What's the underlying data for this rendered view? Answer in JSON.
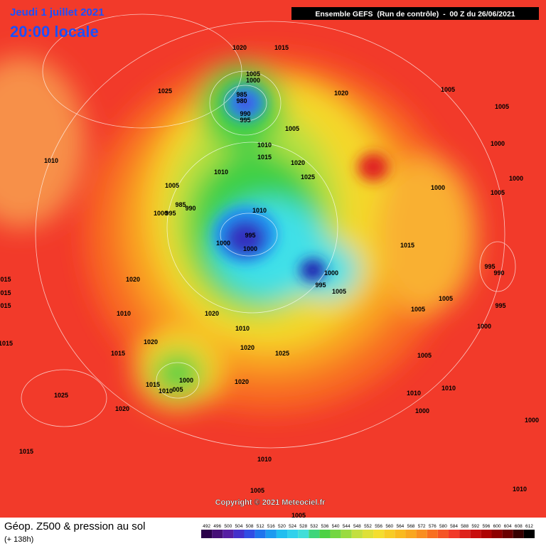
{
  "header": {
    "date": "Jeudi 1 juillet 2021",
    "time": "20:00 locale",
    "run": "Ensemble GEFS  (Run de contrôle)  -  00 Z du 26/06/2021"
  },
  "copyright": "Copyright © 2021 Meteociel.fr",
  "footer": {
    "title": "Géop. Z500 & pression au sol",
    "subtitle": "(+ 138h)"
  },
  "colorbar": {
    "labels": [
      492,
      496,
      500,
      504,
      508,
      512,
      516,
      520,
      524,
      528,
      532,
      536,
      540,
      544,
      548,
      552,
      556,
      560,
      564,
      568,
      572,
      576,
      580,
      584,
      588,
      592,
      596,
      600,
      604,
      608,
      612
    ]
  },
  "isobar_labels": [
    "1020",
    "1015",
    "1025",
    "1005",
    "1000",
    "985",
    "980",
    "990",
    "995",
    "1020",
    "1005",
    "1005",
    "1005",
    "1010",
    "1015",
    "1020",
    "1025",
    "1010",
    "1010",
    "1000",
    "1005",
    "1000",
    "1000",
    "1005",
    "985",
    "990",
    "1000",
    "995",
    "1010",
    "995",
    "1000",
    "1000",
    "1015",
    "995",
    "990",
    "1000",
    "995",
    "1005",
    "1020",
    "015",
    "015",
    "015",
    "1005",
    "1005",
    "995",
    "1010",
    "1020",
    "1000",
    "1010",
    "1020",
    "1015",
    "1020",
    "1025",
    "1015",
    "1005",
    "1000",
    "1015",
    "1010",
    "005",
    "1020",
    "1010",
    "1010",
    "1025",
    "1020",
    "1000",
    "1000",
    "1015",
    "1010",
    "1005",
    "1010",
    "1005"
  ]
}
